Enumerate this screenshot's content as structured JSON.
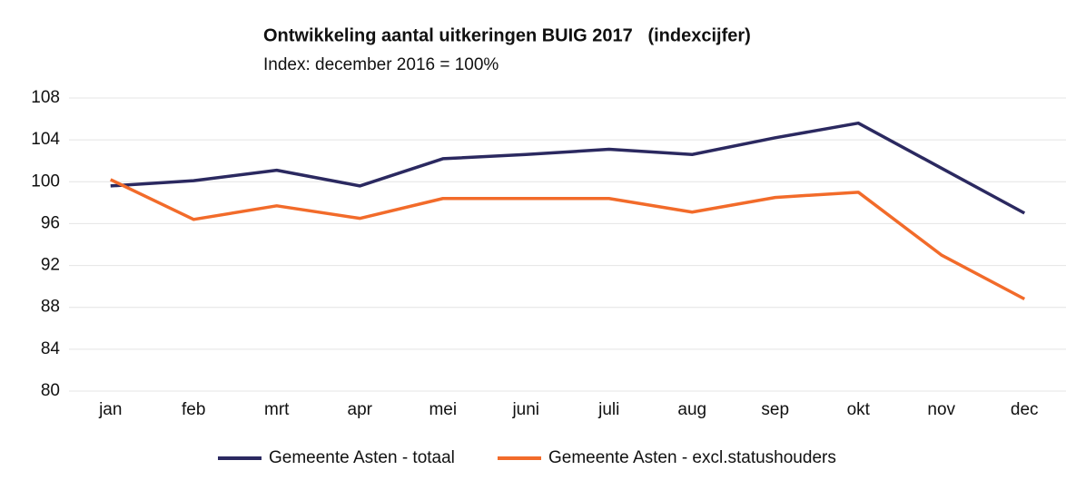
{
  "chart_data": {
    "type": "line",
    "title": "Ontwikkeling aantal uitkeringen BUIG 2017   (indexcijfer)",
    "subtitle": "Index: december 2016 = 100%",
    "categories": [
      "jan",
      "feb",
      "mrt",
      "apr",
      "mei",
      "juni",
      "juli",
      "aug",
      "sep",
      "okt",
      "nov",
      "dec"
    ],
    "series": [
      {
        "name": "Gemeente Asten - totaal",
        "color": "#2b2960",
        "values": [
          99.6,
          100.1,
          101.1,
          99.6,
          102.2,
          102.6,
          103.1,
          102.6,
          104.2,
          105.6,
          101.3,
          97.0
        ]
      },
      {
        "name": "Gemeente Asten - excl.statushouders",
        "color": "#f26b2a",
        "values": [
          100.2,
          96.4,
          97.7,
          96.5,
          98.4,
          98.4,
          98.4,
          97.1,
          98.5,
          99.0,
          93.0,
          88.8
        ]
      }
    ],
    "ylim": [
      80,
      108
    ],
    "yticks": [
      80,
      84,
      88,
      92,
      96,
      100,
      104,
      108
    ],
    "grid": true,
    "legend": "bottom"
  }
}
